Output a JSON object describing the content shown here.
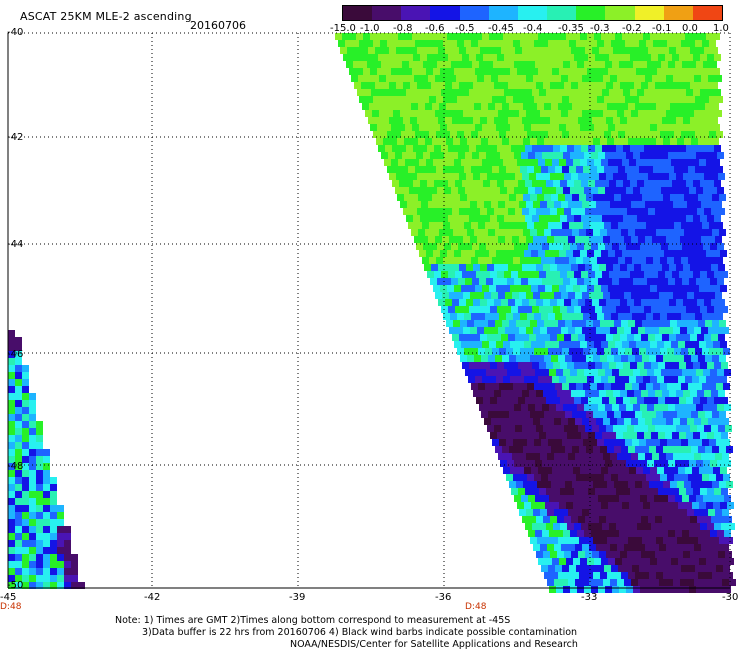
{
  "header": {
    "title": "ASCAT 25KM MLE-2 ascending",
    "date": "20160706"
  },
  "colorbar": {
    "labels": [
      "-15.0",
      "-1.0",
      "-0.8",
      "-0.6",
      "-0.5",
      "-0.45",
      "-0.4",
      "-0.35",
      "-0.3",
      "-0.2",
      "-0.1",
      "0.0",
      "1.0"
    ],
    "colors": [
      "#3a0a3a",
      "#480d6a",
      "#4a14b4",
      "#1414e6",
      "#1e64ff",
      "#1eb4ff",
      "#28f0f0",
      "#28f0b4",
      "#28f028",
      "#8cf028",
      "#f0f028",
      "#f0a014",
      "#f04614"
    ]
  },
  "axes": {
    "y_ticks": [
      "-40",
      "-42",
      "-44",
      "-46",
      "-48",
      "-50"
    ],
    "x_ticks": [
      "-45",
      "-42",
      "-39",
      "-36",
      "-33",
      "-30"
    ],
    "day_labels": [
      "D:48",
      "D:48"
    ]
  },
  "notes": {
    "line1": "Note: 1) Times are GMT 2)Times along bottom correspond to measurement at -45S",
    "line2": "3)Data buffer is 22 hrs from 20160706 4) Black wind barbs indicate possible contamination",
    "line3": "NOAA/NESDIS/Center for Satellite Applications and Research"
  }
}
